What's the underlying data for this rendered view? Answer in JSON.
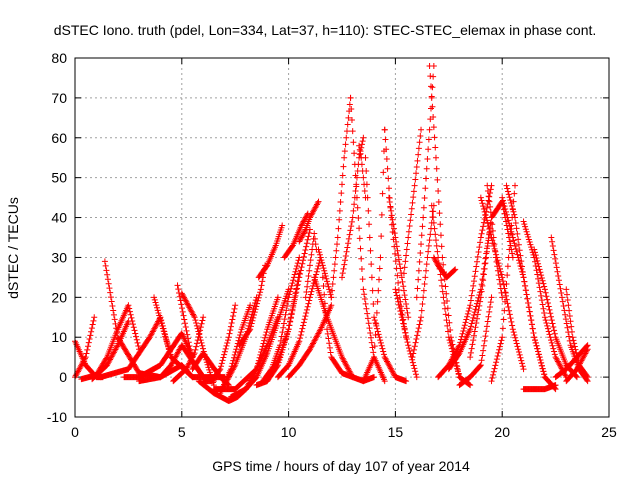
{
  "chart_data": {
    "type": "scatter",
    "title": "dSTEC Iono. truth (pdel, Lon=334, Lat=37, h=110): STEC-STEC_elemax in phase cont.",
    "xlabel": "GPS time / hours of day 107 of year 2014",
    "ylabel": "dSTEC  / TECUs",
    "xlim": [
      0,
      25
    ],
    "ylim": [
      -10,
      80
    ],
    "xticks": [
      "0",
      "5",
      "10",
      "15",
      "20",
      "25"
    ],
    "yticks": [
      "-10",
      "0",
      "10",
      "20",
      "30",
      "40",
      "50",
      "60",
      "70",
      "80"
    ],
    "grid": true,
    "marker": "+",
    "color": "#ff0000",
    "series": [
      {
        "x": [
          0.0,
          0.5,
          1.0,
          1.3
        ],
        "y": [
          9,
          3,
          0,
          0
        ]
      },
      {
        "x": [
          0.0,
          0.5,
          0.9
        ],
        "y": [
          0,
          5,
          15
        ]
      },
      {
        "x": [
          0.3,
          1.0,
          1.5,
          2.0,
          2.5,
          3.0
        ],
        "y": [
          -0.5,
          0.5,
          5,
          12,
          18,
          7
        ]
      },
      {
        "x": [
          1.4,
          2.0,
          3.0,
          4.0
        ],
        "y": [
          29,
          10,
          1,
          0
        ]
      },
      {
        "x": [
          0.8,
          1.5,
          2.0,
          2.5
        ],
        "y": [
          -0.5,
          3,
          8,
          14
        ]
      },
      {
        "x": [
          1.2,
          2.5,
          3.0,
          3.5,
          4.0,
          4.5
        ],
        "y": [
          0,
          2,
          6,
          10,
          15,
          5
        ]
      },
      {
        "x": [
          2.3,
          3.0,
          4.0,
          5.0,
          5.5
        ],
        "y": [
          0,
          0,
          3,
          11,
          5
        ]
      },
      {
        "x": [
          3.0,
          4.0,
          5.0,
          5.5
        ],
        "y": [
          -1,
          0,
          3,
          0
        ]
      },
      {
        "x": [
          3.7,
          4.5,
          5.5,
          6.0
        ],
        "y": [
          20,
          5,
          0,
          0
        ]
      },
      {
        "x": [
          4.0,
          4.5,
          5.0,
          6.0,
          6.5,
          7.0
        ],
        "y": [
          0,
          3,
          8,
          0,
          0,
          0
        ]
      },
      {
        "x": [
          4.8,
          5.5,
          6.0,
          6.5
        ],
        "y": [
          23,
          4,
          0,
          -1
        ]
      },
      {
        "x": [
          5.0,
          5.6,
          6.1,
          6.5
        ],
        "y": [
          21,
          15,
          5,
          -2
        ]
      },
      {
        "x": [
          5.5,
          6.0,
          6.4,
          6.8,
          7.2
        ],
        "y": [
          2,
          6,
          3,
          0,
          -2
        ]
      },
      {
        "x": [
          4.6,
          5.2,
          5.6,
          6.0
        ],
        "y": [
          -1,
          2,
          6,
          15
        ]
      },
      {
        "x": [
          6.0,
          6.4,
          6.8,
          7.2,
          7.5
        ],
        "y": [
          -1,
          -1,
          2,
          10,
          18
        ]
      },
      {
        "x": [
          5.8,
          6.5,
          7.2,
          7.6,
          8.0
        ],
        "y": [
          -1,
          -4,
          -6,
          -5,
          -3
        ]
      },
      {
        "x": [
          6.8,
          7.3,
          7.8,
          8.2
        ],
        "y": [
          -4,
          2,
          12,
          18
        ]
      },
      {
        "x": [
          7.0,
          7.5,
          8.0,
          8.5
        ],
        "y": [
          -2,
          3,
          10,
          20
        ]
      },
      {
        "x": [
          7.3,
          8.0,
          8.5,
          9.0,
          9.5
        ],
        "y": [
          -5,
          -3,
          2,
          8,
          15
        ]
      },
      {
        "x": [
          8.0,
          8.5,
          9.0,
          9.5,
          10.0
        ],
        "y": [
          -3,
          0,
          6,
          14,
          22
        ]
      },
      {
        "x": [
          8.5,
          9.0,
          9.5,
          10.0,
          10.5
        ],
        "y": [
          -2,
          -1,
          3,
          12,
          26
        ]
      },
      {
        "x": [
          7.7,
          8.2,
          8.7,
          8.9
        ],
        "y": [
          8,
          12,
          22,
          28
        ]
      },
      {
        "x": [
          8.8,
          9.2,
          9.6,
          10.0,
          10.5
        ],
        "y": [
          -1,
          2,
          8,
          20,
          30
        ]
      },
      {
        "x": [
          9.0,
          9.5,
          10.0,
          10.5,
          11.0
        ],
        "y": [
          0,
          4,
          12,
          25,
          37
        ]
      },
      {
        "x": [
          9.5,
          10.0,
          10.5,
          11.0,
          11.5
        ],
        "y": [
          0,
          3,
          9,
          20,
          30
        ]
      },
      {
        "x": [
          6.5,
          7.5,
          8.5,
          9.0,
          9.5
        ],
        "y": [
          -3,
          -3,
          2,
          12,
          20
        ]
      },
      {
        "x": [
          8.6,
          9.0,
          9.4,
          9.7
        ],
        "y": [
          25,
          28,
          33,
          38
        ]
      },
      {
        "x": [
          9.8,
          10.2,
          10.6,
          10.9
        ],
        "y": [
          30,
          33,
          38,
          41
        ]
      },
      {
        "x": [
          10.5,
          10.8,
          11.0,
          11.4
        ],
        "y": [
          34,
          37,
          40,
          44
        ]
      },
      {
        "x": [
          11.4,
          11.6,
          11.8,
          12.0
        ],
        "y": [
          32,
          28,
          24,
          20
        ]
      },
      {
        "x": [
          10.8,
          11.0,
          11.2,
          11.3
        ],
        "y": [
          20,
          28,
          36,
          32
        ]
      },
      {
        "x": [
          11.2,
          11.5,
          11.8,
          12.5,
          13.0
        ],
        "y": [
          25,
          20,
          15,
          5,
          0
        ]
      },
      {
        "x": [
          11.6,
          11.8,
          12.0,
          12.5,
          13.0,
          13.5,
          14.0
        ],
        "y": [
          25,
          12,
          5,
          1,
          0,
          -1,
          0
        ]
      },
      {
        "x": [
          10.0,
          10.5,
          11.0,
          11.5,
          12.0
        ],
        "y": [
          0,
          3,
          7,
          12,
          18
        ]
      },
      {
        "x": [
          12.0,
          12.3,
          12.6,
          12.9
        ],
        "y": [
          20,
          35,
          55,
          70
        ]
      },
      {
        "x": [
          12.9,
          13.2,
          13.5,
          14.0,
          14.5
        ],
        "y": [
          70,
          45,
          22,
          5,
          -1
        ]
      },
      {
        "x": [
          13.3,
          13.4,
          13.5,
          13.6
        ],
        "y": [
          58,
          55,
          50,
          45
        ]
      },
      {
        "x": [
          13.6,
          13.8,
          14.0,
          14.5,
          15.0,
          15.5
        ],
        "y": [
          55,
          35,
          15,
          5,
          0,
          -1
        ]
      },
      {
        "x": [
          12.5,
          13.0,
          13.3,
          13.5
        ],
        "y": [
          25,
          40,
          55,
          60
        ]
      },
      {
        "x": [
          13.5,
          14.0,
          14.3,
          14.5
        ],
        "y": [
          -1,
          5,
          30,
          62
        ]
      },
      {
        "x": [
          14.5,
          14.8,
          15.2,
          15.5
        ],
        "y": [
          62,
          40,
          20,
          10
        ]
      },
      {
        "x": [
          14.7,
          15.0,
          15.3,
          15.6
        ],
        "y": [
          45,
          35,
          25,
          15
        ]
      },
      {
        "x": [
          15.0,
          15.3,
          15.6,
          16.0
        ],
        "y": [
          22,
          15,
          8,
          0
        ]
      },
      {
        "x": [
          15.4,
          15.6,
          15.9,
          16.2
        ],
        "y": [
          26,
          35,
          48,
          62
        ]
      },
      {
        "x": [
          16.0,
          16.3,
          16.6,
          16.8
        ],
        "y": [
          20,
          40,
          62,
          78
        ]
      },
      {
        "x": [
          16.6,
          16.9,
          17.2,
          17.6,
          18.0,
          18.5
        ],
        "y": [
          78,
          55,
          30,
          10,
          0,
          -2
        ]
      },
      {
        "x": [
          16.7,
          17.0,
          17.5,
          18.0
        ],
        "y": [
          43,
          30,
          10,
          0
        ]
      },
      {
        "x": [
          15.8,
          16.2,
          16.5,
          16.8
        ],
        "y": [
          5,
          15,
          30,
          43
        ]
      },
      {
        "x": [
          16.8,
          17.0,
          17.4,
          17.8
        ],
        "y": [
          30,
          28,
          25,
          27
        ]
      },
      {
        "x": [
          17.0,
          17.5,
          18.0,
          18.5,
          19.0,
          19.5
        ],
        "y": [
          0,
          3,
          8,
          18,
          35,
          48
        ]
      },
      {
        "x": [
          17.5,
          18.0,
          18.5,
          19.0,
          19.5
        ],
        "y": [
          2,
          6,
          12,
          22,
          40
        ]
      },
      {
        "x": [
          19.3,
          19.5,
          19.7,
          20.0
        ],
        "y": [
          48,
          40,
          30,
          20
        ]
      },
      {
        "x": [
          19.0,
          19.5,
          20.0,
          20.5,
          21.0
        ],
        "y": [
          45,
          35,
          25,
          12,
          2
        ]
      },
      {
        "x": [
          18.5,
          19.0,
          19.5,
          20.0,
          20.5
        ],
        "y": [
          5,
          20,
          40,
          44,
          30
        ]
      },
      {
        "x": [
          18.0,
          18.5,
          19.0,
          19.5
        ],
        "y": [
          -2,
          0,
          3,
          20
        ]
      },
      {
        "x": [
          19.5,
          20.0,
          20.3,
          20.6
        ],
        "y": [
          -1,
          10,
          30,
          48
        ]
      },
      {
        "x": [
          20.2,
          20.6,
          21.0,
          21.5,
          22.0,
          22.5
        ],
        "y": [
          48,
          40,
          25,
          10,
          0,
          -3
        ]
      },
      {
        "x": [
          20.0,
          20.5,
          21.0,
          21.5,
          22.0
        ],
        "y": [
          45,
          35,
          25,
          10,
          0
        ]
      },
      {
        "x": [
          21.0,
          21.5,
          22.0,
          22.5,
          23.0
        ],
        "y": [
          39,
          30,
          15,
          5,
          0
        ]
      },
      {
        "x": [
          21.5,
          22.0,
          22.5,
          23.0,
          23.5
        ],
        "y": [
          32,
          22,
          10,
          3,
          0
        ]
      },
      {
        "x": [
          22.3,
          22.8,
          23.2,
          23.6,
          24.0
        ],
        "y": [
          35,
          20,
          8,
          2,
          -1
        ]
      },
      {
        "x": [
          21.0,
          21.5,
          22.0,
          22.5
        ],
        "y": [
          -3,
          -3,
          -3,
          -2
        ]
      },
      {
        "x": [
          23.0,
          23.3,
          23.6,
          24.0
        ],
        "y": [
          22,
          10,
          3,
          0
        ]
      },
      {
        "x": [
          23.0,
          23.5,
          24.0
        ],
        "y": [
          -1,
          2,
          7
        ]
      },
      {
        "x": [
          22.5,
          23.0,
          23.5,
          24.0
        ],
        "y": [
          0,
          2,
          5,
          8
        ]
      }
    ]
  }
}
